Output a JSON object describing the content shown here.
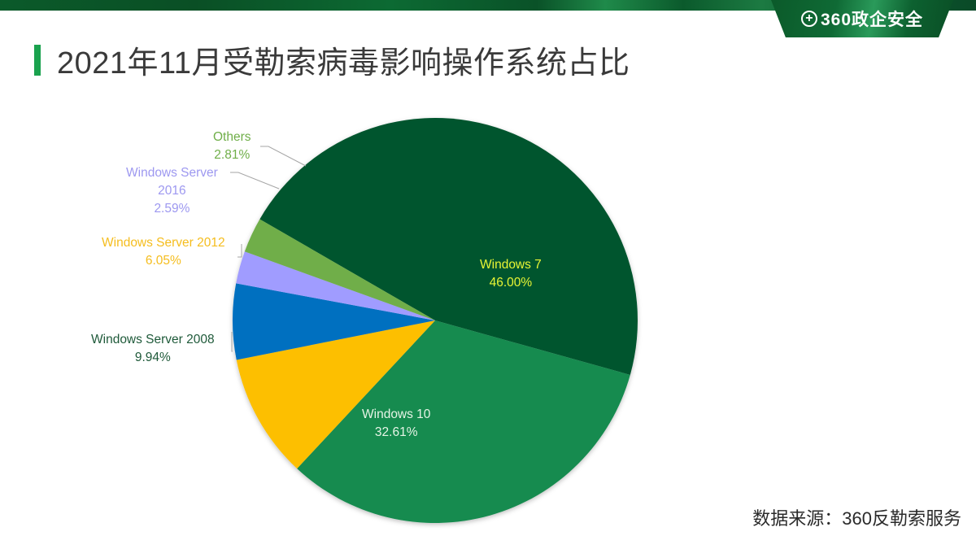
{
  "header": {
    "brand": "360政企安全",
    "brand_icon": "plus-circle-icon",
    "title": "2021年11月受勒索病毒影响操作系统占比"
  },
  "footer": {
    "source": "数据来源：360反勒索服务"
  },
  "colors": {
    "windows_7": "#06552e",
    "windows_10": "#168b50",
    "windows_server_2008": "#fdbf00",
    "windows_server_2012": "#0570c0",
    "windows_server_2016": "#a09cff",
    "others": "#6fae48",
    "accent": "#1aa24e"
  },
  "labels": {
    "windows_7": {
      "name": "Windows 7",
      "pct": "46.00%"
    },
    "windows_10": {
      "name": "Windows 10",
      "pct": "32.61%"
    },
    "windows_server_2008": {
      "name": "Windows Server 2008",
      "pct": "9.94%"
    },
    "windows_server_2012": {
      "name": "Windows Server 2012",
      "pct": "6.05%"
    },
    "windows_server_2016": {
      "name1": "Windows Server",
      "name2": "2016",
      "pct": "2.59%"
    },
    "others": {
      "name": "Others",
      "pct": "2.81%"
    }
  },
  "chart_data": {
    "type": "pie",
    "title": "2021年11月受勒索病毒影响操作系统占比",
    "categories": [
      "Windows 7",
      "Windows 10",
      "Windows Server 2008",
      "Windows Server 2012",
      "Windows Server 2016",
      "Others"
    ],
    "values": [
      46.0,
      32.61,
      9.94,
      6.05,
      2.59,
      2.81
    ],
    "unit": "%",
    "colors": [
      "#06552e",
      "#168b50",
      "#fdbf00",
      "#0570c0",
      "#a09cff",
      "#6fae48"
    ],
    "start_angle_deg": -60,
    "direction": "clockwise",
    "legend": "none (data labels with leader lines)",
    "source": "数据来源：360反勒索服务"
  }
}
